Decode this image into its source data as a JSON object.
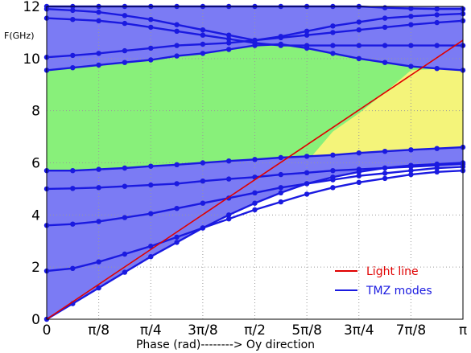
{
  "chart_data": {
    "type": "line",
    "xlabel": "Phase (rad)--------> Oy direction",
    "ylabel": "F(GHz)",
    "xlim": [
      0,
      3.14159
    ],
    "ylim": [
      0,
      12
    ],
    "grid": true,
    "x_tick_labels": [
      "0",
      "π/8",
      "π/4",
      "3π/8",
      "π/2",
      "5π/8",
      "3π/4",
      "7π/8",
      "π"
    ],
    "y_tick_labels": [
      "0",
      "2",
      "4",
      "6",
      "8",
      "10",
      "12"
    ],
    "y_tick_values": [
      0,
      2,
      4,
      6,
      8,
      10,
      12
    ],
    "x": [
      0,
      0.1963,
      0.3927,
      0.589,
      0.7854,
      0.9817,
      1.1781,
      1.3744,
      1.5708,
      1.7671,
      1.9635,
      2.1598,
      2.3562,
      2.5525,
      2.7489,
      2.9452,
      3.1416
    ],
    "bands": [
      {
        "kind": "allowed",
        "color": "#7b7bf4",
        "lower": [
          0,
          0.6,
          1.2,
          1.8,
          2.4,
          2.95,
          3.5,
          4.0,
          4.45,
          4.85,
          5.2,
          5.45,
          5.65,
          5.8,
          5.9,
          5.95,
          6.0
        ],
        "upper": [
          5.7,
          5.7,
          5.75,
          5.8,
          5.87,
          5.93,
          6.0,
          6.07,
          6.13,
          6.2,
          6.25,
          6.3,
          6.38,
          6.44,
          6.5,
          6.55,
          6.6
        ]
      },
      {
        "kind": "gap",
        "color": "#88f07a",
        "lower": [
          5.7,
          5.7,
          5.75,
          5.8,
          5.87,
          5.93,
          6.0,
          6.07,
          6.13,
          6.2,
          6.25,
          6.3,
          6.38,
          6.44,
          6.5,
          6.55,
          6.6
        ],
        "upper": [
          9.55,
          9.65,
          9.75,
          9.85,
          9.95,
          10.1,
          10.2,
          10.35,
          10.5,
          10.55,
          10.4,
          10.2,
          10.0,
          9.85,
          9.7,
          9.62,
          9.55
        ]
      },
      {
        "kind": "allowed",
        "color": "#7b7bf4",
        "lower": [
          9.55,
          9.65,
          9.75,
          9.85,
          9.95,
          10.1,
          10.2,
          10.35,
          10.5,
          10.55,
          10.4,
          10.2,
          10.0,
          9.85,
          9.7,
          9.62,
          9.55
        ],
        "upper": [
          12,
          12,
          12,
          12,
          12,
          12,
          12,
          12,
          12,
          12,
          12,
          12,
          12,
          12,
          12,
          12,
          12
        ]
      }
    ],
    "light_gap": {
      "color": "#f4f47a",
      "x": [
        2.0,
        2.1598,
        2.3562,
        2.5525,
        2.7489,
        2.9452,
        3.1416
      ],
      "lower": [
        6.25,
        6.3,
        6.38,
        6.44,
        6.5,
        6.55,
        6.6
      ],
      "upper": [
        6.25,
        7.2,
        7.9,
        8.7,
        9.55,
        9.6,
        9.55
      ]
    },
    "series": [
      {
        "name": "Light line",
        "color": "#e00000",
        "x": [
          0,
          3.1416
        ],
        "values": [
          0,
          10.7
        ]
      },
      {
        "name": "TMZ modes",
        "color": "#1a1ae0",
        "markers": true,
        "values": [
          0,
          0.6,
          1.2,
          1.8,
          2.4,
          2.95,
          3.5,
          4.0,
          4.45,
          4.85,
          5.2,
          5.45,
          5.65,
          5.8,
          5.9,
          5.95,
          6.0
        ]
      },
      {
        "color": "#1a1ae0",
        "markers": true,
        "values": [
          1.85,
          1.95,
          2.2,
          2.5,
          2.8,
          3.15,
          3.5,
          3.85,
          4.2,
          4.5,
          4.8,
          5.05,
          5.25,
          5.4,
          5.55,
          5.65,
          5.7
        ]
      },
      {
        "color": "#1a1ae0",
        "markers": true,
        "values": [
          3.6,
          3.65,
          3.75,
          3.9,
          4.05,
          4.25,
          4.45,
          4.65,
          4.85,
          5.05,
          5.2,
          5.35,
          5.5,
          5.6,
          5.7,
          5.8,
          5.85
        ]
      },
      {
        "color": "#1a1ae0",
        "markers": true,
        "values": [
          5.0,
          5.02,
          5.05,
          5.1,
          5.15,
          5.2,
          5.3,
          5.38,
          5.45,
          5.55,
          5.62,
          5.7,
          5.75,
          5.8,
          5.85,
          5.9,
          5.95
        ]
      },
      {
        "color": "#1a1ae0",
        "markers": true,
        "values": [
          5.7,
          5.7,
          5.75,
          5.8,
          5.87,
          5.93,
          6.0,
          6.07,
          6.13,
          6.2,
          6.25,
          6.3,
          6.38,
          6.44,
          6.5,
          6.55,
          6.6
        ]
      },
      {
        "color": "#1a1ae0",
        "markers": true,
        "values": [
          9.55,
          9.65,
          9.75,
          9.85,
          9.95,
          10.1,
          10.2,
          10.35,
          10.5,
          10.55,
          10.4,
          10.2,
          10.0,
          9.85,
          9.7,
          9.62,
          9.55
        ]
      },
      {
        "color": "#1a1ae0",
        "markers": true,
        "values": [
          10.05,
          10.12,
          10.2,
          10.3,
          10.4,
          10.5,
          10.55,
          10.6,
          10.7,
          10.8,
          10.9,
          11.0,
          11.1,
          11.2,
          11.3,
          11.38,
          11.45
        ]
      },
      {
        "color": "#1a1ae0",
        "markers": true,
        "values": [
          11.55,
          11.5,
          11.45,
          11.35,
          11.2,
          11.05,
          10.9,
          10.75,
          10.6,
          10.5,
          10.5,
          10.5,
          10.5,
          10.5,
          10.5,
          10.5,
          10.5
        ]
      },
      {
        "color": "#1a1ae0",
        "markers": true,
        "values": [
          11.9,
          11.85,
          11.78,
          11.65,
          11.5,
          11.3,
          11.1,
          10.9,
          10.7,
          10.85,
          11.05,
          11.25,
          11.4,
          11.55,
          11.62,
          11.68,
          11.72
        ]
      },
      {
        "color": "#1a1ae0",
        "markers": true,
        "values": [
          12.0,
          12.0,
          12.0,
          12.0,
          12.0,
          12.0,
          12.0,
          12.0,
          12.0,
          12.0,
          12.0,
          12.0,
          12.0,
          11.95,
          11.92,
          11.9,
          11.9
        ]
      }
    ],
    "legend": {
      "placement": "bottom-right",
      "entries": [
        {
          "label": "Light line",
          "color": "#e00000"
        },
        {
          "label": "TMZ modes",
          "color": "#1a1ae0"
        }
      ]
    }
  }
}
